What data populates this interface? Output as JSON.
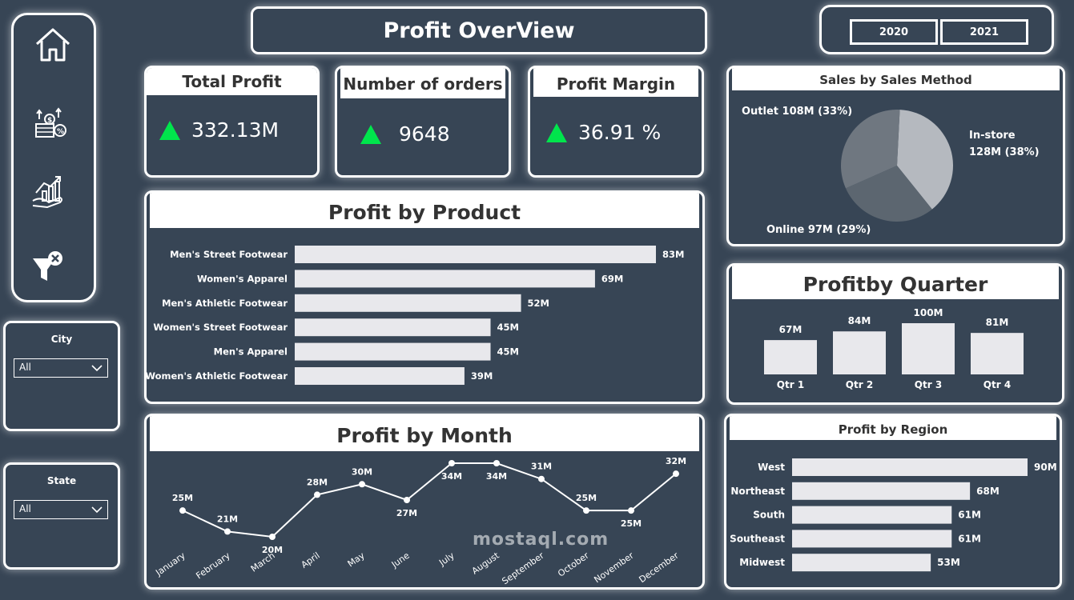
{
  "header": {
    "title": "Profit OverView",
    "years": [
      "2020",
      "2021"
    ]
  },
  "sidebar": {
    "icons": [
      "home-icon",
      "finance-icon",
      "growth-icon",
      "clear-filter-icon"
    ]
  },
  "slicers": {
    "city": {
      "label": "City",
      "value": "All"
    },
    "state": {
      "label": "State",
      "value": "All"
    }
  },
  "kpis": {
    "total_profit": {
      "label": "Total Profit",
      "value": "332.13M"
    },
    "orders": {
      "label": "Number of orders",
      "value": "9648"
    },
    "margin": {
      "label": "Profit Margin",
      "value": "36.91 %"
    }
  },
  "watermark": "mostaql.com",
  "chart_data": [
    {
      "id": "product",
      "type": "bar",
      "title": "Profit by Product",
      "orientation": "horizontal",
      "categories": [
        "Men's Street Footwear",
        "Women's Apparel",
        "Men's Athletic Footwear",
        "Women's Street Footwear",
        "Men's Apparel",
        "Women's Athletic Footwear"
      ],
      "values": [
        83,
        69,
        52,
        45,
        45,
        39
      ],
      "data_labels": [
        "83M",
        "69M",
        "52M",
        "45M",
        "45M",
        "39M"
      ],
      "bar_color": "#e8e8ec"
    },
    {
      "id": "month",
      "type": "line",
      "title": "Profit by Month",
      "categories": [
        "January",
        "February",
        "March",
        "April",
        "May",
        "June",
        "July",
        "August",
        "September",
        "October",
        "November",
        "December"
      ],
      "values": [
        25,
        21,
        20,
        28,
        30,
        27,
        34,
        34,
        31,
        25,
        25,
        32
      ],
      "data_labels": [
        "25M",
        "21M",
        "20M",
        "28M",
        "30M",
        "27M",
        "34M",
        "34M",
        "31M",
        "25M",
        "25M",
        "32M"
      ],
      "line_color": "#ffffff"
    },
    {
      "id": "method",
      "type": "pie",
      "title": "Sales by Sales Method",
      "slices": [
        {
          "label": "In-store",
          "value": 128,
          "value_text": "128M (38%)",
          "color": "#b5b9bf"
        },
        {
          "label": "Online",
          "value": 97,
          "value_text": "97M (29%)",
          "color": "#5c6670"
        },
        {
          "label": "Outlet",
          "value": 108,
          "value_text": "108M (33%)",
          "color": "#6f7780"
        }
      ]
    },
    {
      "id": "quarter",
      "type": "bar",
      "title": "Profitby Quarter",
      "orientation": "vertical",
      "categories": [
        "Qtr 1",
        "Qtr 2",
        "Qtr 3",
        "Qtr 4"
      ],
      "values": [
        67,
        84,
        100,
        81
      ],
      "data_labels": [
        "67M",
        "84M",
        "100M",
        "81M"
      ],
      "bar_color": "#e8e8ec"
    },
    {
      "id": "region",
      "type": "bar",
      "title": "Profit by Region",
      "orientation": "horizontal",
      "categories": [
        "West",
        "Northeast",
        "South",
        "Southeast",
        "Midwest"
      ],
      "values": [
        90,
        68,
        61,
        61,
        53
      ],
      "data_labels": [
        "90M",
        "68M",
        "61M",
        "61M",
        "53M"
      ],
      "bar_color": "#e8e8ec"
    }
  ]
}
